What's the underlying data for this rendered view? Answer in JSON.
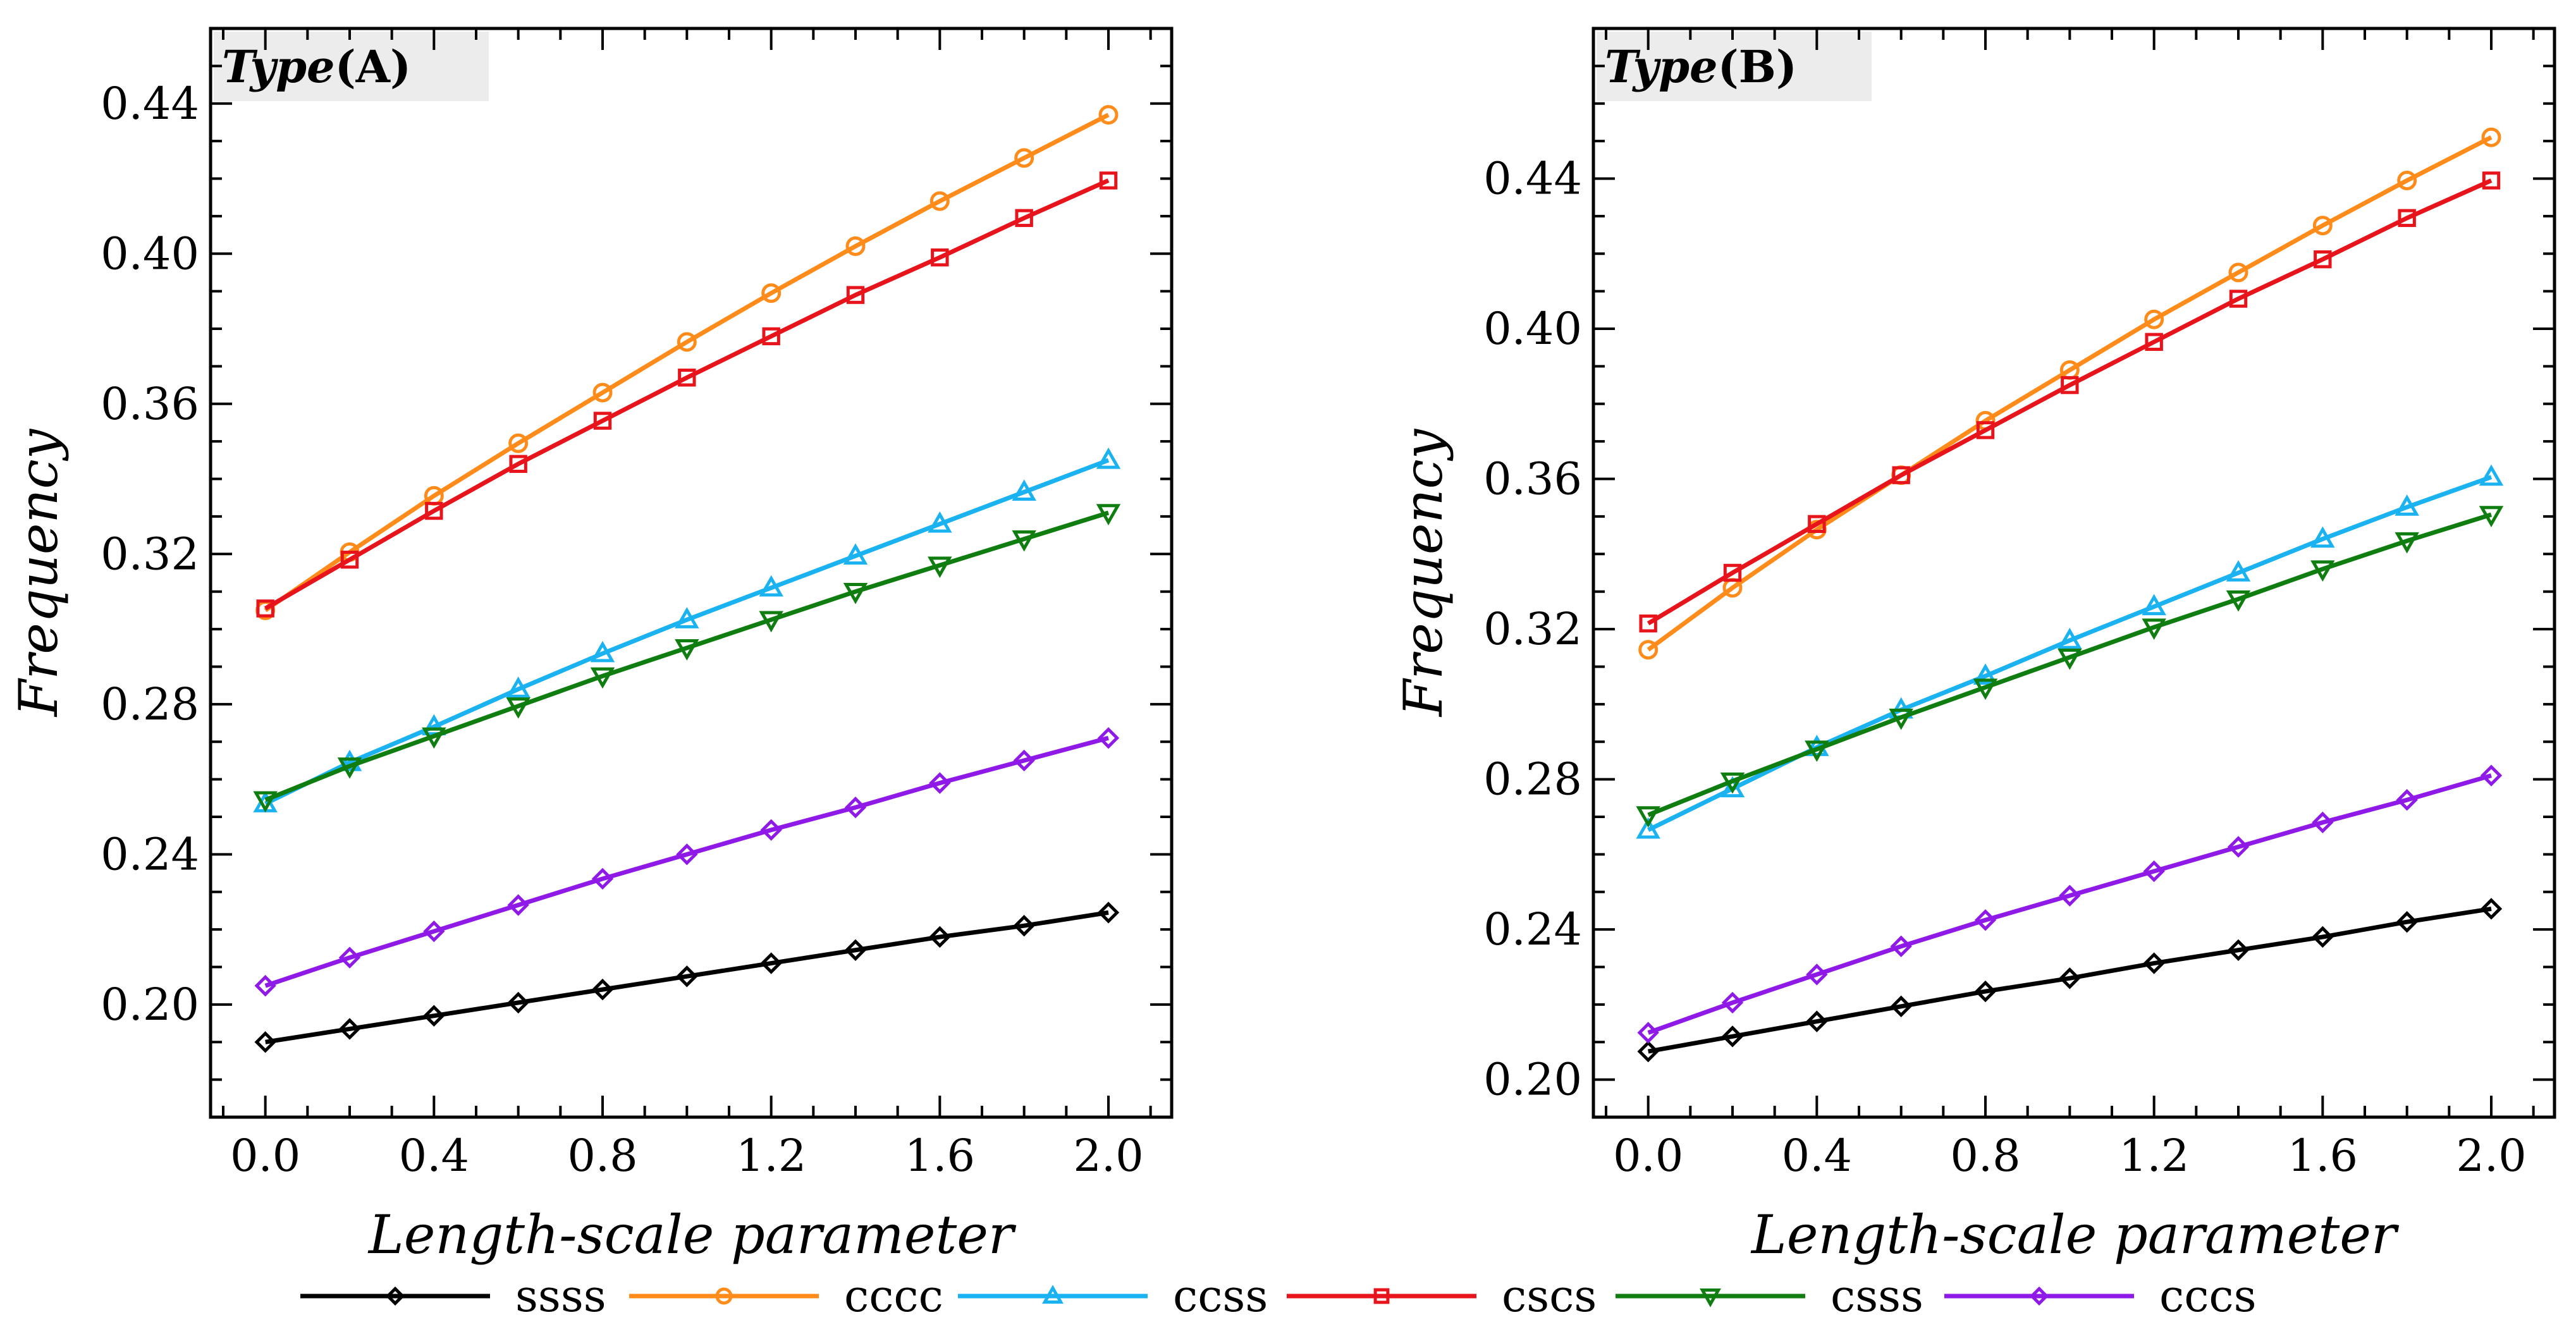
{
  "chart_data": [
    {
      "type": "line",
      "panel_label_italic": "Type",
      "panel_label_rest": "(A)",
      "xlabel": "Length-scale parameter",
      "ylabel": "Frequency",
      "xlim": [
        -0.13,
        2.15
      ],
      "ylim": [
        0.17,
        0.46
      ],
      "xticks": [
        0.0,
        0.4,
        0.8,
        1.2,
        1.6,
        2.0
      ],
      "xtick_labels": [
        "0.0",
        "0.4",
        "0.8",
        "1.2",
        "1.6",
        "2.0"
      ],
      "yticks": [
        0.2,
        0.24,
        0.28,
        0.32,
        0.36,
        0.4,
        0.44
      ],
      "ytick_labels": [
        "0.20",
        "0.24",
        "0.28",
        "0.32",
        "0.36",
        "0.40",
        "0.44"
      ],
      "x": [
        0.0,
        0.2,
        0.4,
        0.6,
        0.8,
        1.0,
        1.2,
        1.4,
        1.6,
        1.8,
        2.0
      ],
      "series": [
        {
          "name": "ssss",
          "color": "#000000",
          "marker": "diamond",
          "values": [
            0.19,
            0.1935,
            0.197,
            0.2005,
            0.204,
            0.2075,
            0.211,
            0.2145,
            0.218,
            0.221,
            0.2245
          ]
        },
        {
          "name": "cccc",
          "color": "#ff8c1a",
          "marker": "circle",
          "values": [
            0.305,
            0.3205,
            0.3355,
            0.3495,
            0.363,
            0.3765,
            0.3895,
            0.402,
            0.414,
            0.4255,
            0.437
          ]
        },
        {
          "name": "ccss",
          "color": "#1ab2f0",
          "marker": "triangle-up",
          "values": [
            0.2535,
            0.2645,
            0.274,
            0.284,
            0.2935,
            0.3025,
            0.311,
            0.3195,
            0.328,
            0.3365,
            0.345
          ]
        },
        {
          "name": "cscs",
          "color": "#e8141c",
          "marker": "square",
          "values": [
            0.3055,
            0.3185,
            0.3315,
            0.344,
            0.3555,
            0.367,
            0.378,
            0.389,
            0.399,
            0.4095,
            0.4195
          ]
        },
        {
          "name": "csss",
          "color": "#0f7d10",
          "marker": "triangle-down",
          "values": [
            0.2545,
            0.2635,
            0.2715,
            0.2795,
            0.2875,
            0.295,
            0.3025,
            0.31,
            0.317,
            0.324,
            0.331
          ]
        },
        {
          "name": "cccs",
          "color": "#8f1ae8",
          "marker": "diamond",
          "values": [
            0.205,
            0.2125,
            0.2195,
            0.2265,
            0.2335,
            0.24,
            0.2465,
            0.2525,
            0.259,
            0.265,
            0.271
          ]
        }
      ]
    },
    {
      "type": "line",
      "panel_label_italic": "Type",
      "panel_label_rest": "(B)",
      "xlabel": "Length-scale parameter",
      "ylabel": "Frequency",
      "xlim": [
        -0.13,
        2.15
      ],
      "ylim": [
        0.19,
        0.48
      ],
      "xticks": [
        0.0,
        0.4,
        0.8,
        1.2,
        1.6,
        2.0
      ],
      "xtick_labels": [
        "0.0",
        "0.4",
        "0.8",
        "1.2",
        "1.6",
        "2.0"
      ],
      "yticks": [
        0.2,
        0.24,
        0.28,
        0.32,
        0.36,
        0.4,
        0.44
      ],
      "ytick_labels": [
        "0.20",
        "0.24",
        "0.28",
        "0.32",
        "0.36",
        "0.40",
        "0.44"
      ],
      "x": [
        0.0,
        0.2,
        0.4,
        0.6,
        0.8,
        1.0,
        1.2,
        1.4,
        1.6,
        1.8,
        2.0
      ],
      "series": [
        {
          "name": "ssss",
          "color": "#000000",
          "marker": "diamond",
          "values": [
            0.2075,
            0.2115,
            0.2155,
            0.2195,
            0.2235,
            0.227,
            0.231,
            0.2345,
            0.238,
            0.242,
            0.2455
          ]
        },
        {
          "name": "cccc",
          "color": "#ff8c1a",
          "marker": "circle",
          "values": [
            0.3145,
            0.331,
            0.3465,
            0.361,
            0.3755,
            0.389,
            0.4025,
            0.415,
            0.4275,
            0.4395,
            0.451
          ]
        },
        {
          "name": "ccss",
          "color": "#1ab2f0",
          "marker": "triangle-up",
          "values": [
            0.2665,
            0.2775,
            0.2885,
            0.2985,
            0.3075,
            0.317,
            0.326,
            0.335,
            0.344,
            0.3525,
            0.3605
          ]
        },
        {
          "name": "cscs",
          "color": "#e8141c",
          "marker": "square",
          "values": [
            0.3215,
            0.335,
            0.348,
            0.361,
            0.373,
            0.385,
            0.3965,
            0.408,
            0.4185,
            0.4295,
            0.4395
          ]
        },
        {
          "name": "csss",
          "color": "#0f7d10",
          "marker": "triangle-down",
          "values": [
            0.2705,
            0.2795,
            0.288,
            0.2965,
            0.3045,
            0.3125,
            0.3205,
            0.328,
            0.336,
            0.3435,
            0.3505
          ]
        },
        {
          "name": "cccs",
          "color": "#8f1ae8",
          "marker": "diamond",
          "values": [
            0.2125,
            0.2205,
            0.228,
            0.2355,
            0.2425,
            0.249,
            0.2555,
            0.262,
            0.2685,
            0.2745,
            0.281
          ]
        }
      ]
    }
  ],
  "legend": [
    {
      "name": "ssss",
      "color": "#000000",
      "marker": "diamond"
    },
    {
      "name": "cccc",
      "color": "#ff8c1a",
      "marker": "circle"
    },
    {
      "name": "ccss",
      "color": "#1ab2f0",
      "marker": "triangle-up"
    },
    {
      "name": "cscs",
      "color": "#e8141c",
      "marker": "square"
    },
    {
      "name": "csss",
      "color": "#0f7d10",
      "marker": "triangle-down"
    },
    {
      "name": "cccs",
      "color": "#8f1ae8",
      "marker": "diamond"
    }
  ]
}
